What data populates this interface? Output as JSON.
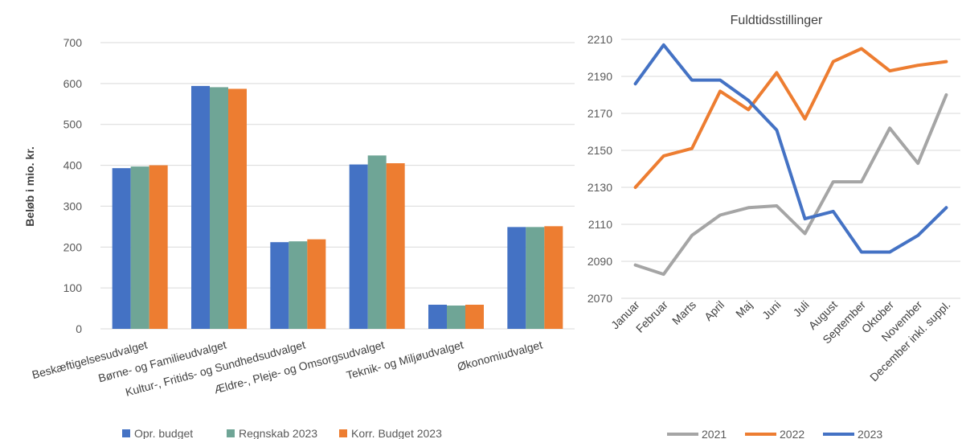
{
  "chart_data": [
    {
      "type": "bar",
      "title": "",
      "ylabel": "Beløb i mio. kr.",
      "ylim": [
        0,
        700
      ],
      "yticks": [
        "0",
        "100",
        "200",
        "300",
        "400",
        "500",
        "600",
        "700"
      ],
      "grid": true,
      "legend_position": "bottom",
      "categories": [
        "Beskæftigelsesudvalget",
        "Børne- og Familieudvalget",
        "Kultur-, Fritids- og Sundhedsudvalget",
        "Ældre-, Pleje- og Omsorgsudvalget",
        "Teknik- og Miljøudvalget",
        "Økonomiudvalget"
      ],
      "series": [
        {
          "name": "Opr. budget",
          "color": "#4472C4",
          "values": [
            393,
            594,
            212,
            402,
            59,
            249
          ]
        },
        {
          "name": "Regnskab 2023",
          "color": "#6FA596",
          "values": [
            397,
            591,
            214,
            424,
            57,
            249
          ]
        },
        {
          "name": "Korr. Budget 2023",
          "color": "#ED7D31",
          "values": [
            400,
            587,
            219,
            405,
            59,
            251
          ]
        }
      ]
    },
    {
      "type": "line",
      "title": "Fuldtidsstillinger",
      "ylim": [
        2070,
        2210
      ],
      "yticks": [
        "2070",
        "2090",
        "2110",
        "2130",
        "2150",
        "2170",
        "2190",
        "2210"
      ],
      "grid": true,
      "legend_position": "bottom",
      "categories": [
        "Januar",
        "Februar",
        "Marts",
        "April",
        "Maj",
        "Juni",
        "Juli",
        "August",
        "September",
        "Oktober",
        "November",
        "December inkl. suppl."
      ],
      "series": [
        {
          "name": "2021",
          "color": "#A5A5A5",
          "values": [
            2088,
            2083,
            2104,
            2115,
            2119,
            2120,
            2105,
            2133,
            2133,
            2162,
            2143,
            2180
          ]
        },
        {
          "name": "2022",
          "color": "#ED7D31",
          "values": [
            2130,
            2147,
            2151,
            2182,
            2172,
            2192,
            2167,
            2198,
            2205,
            2193,
            2196,
            2198
          ]
        },
        {
          "name": "2023",
          "color": "#4472C4",
          "values": [
            2186,
            2207,
            2188,
            2188,
            2177,
            2161,
            2113,
            2117,
            2095,
            2095,
            2104,
            2119
          ]
        }
      ]
    }
  ]
}
